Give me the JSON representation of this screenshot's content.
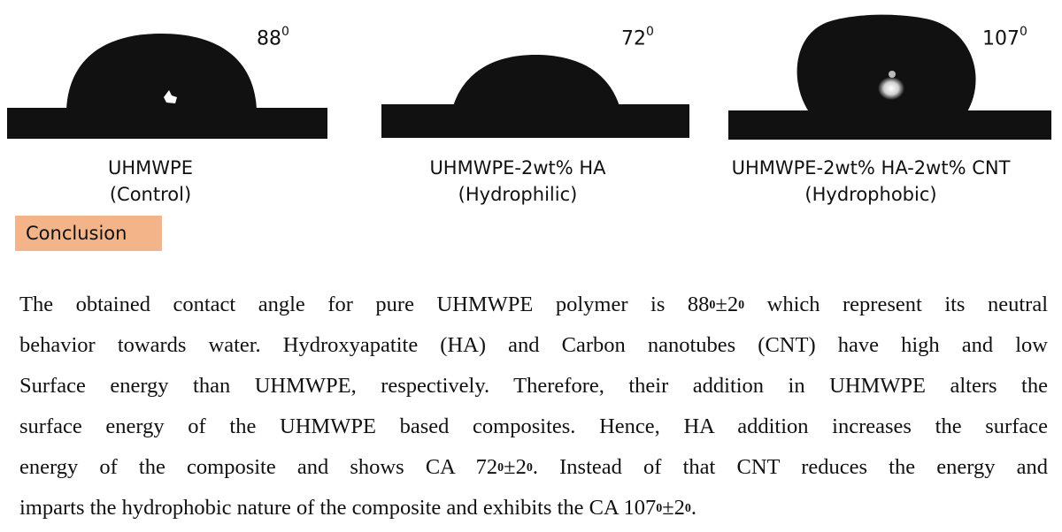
{
  "panels": [
    {
      "angle_value": "88",
      "angle_unit": "0",
      "caption_line1": "UHMWPE",
      "caption_line2": "(Control)",
      "contact_angle_deg": 88
    },
    {
      "angle_value": "72",
      "angle_unit": "0",
      "caption_line1": "UHMWPE-2wt% HA",
      "caption_line2": "(Hydrophilic)",
      "contact_angle_deg": 72
    },
    {
      "angle_value": "107",
      "angle_unit": "0",
      "caption_line1": "UHMWPE-2wt% HA-2wt% CNT",
      "caption_line2": "(Hydrophobic)",
      "contact_angle_deg": 107
    }
  ],
  "conclusion_label": "Conclusion",
  "paragraph": {
    "l1a": "The obtained contact angle for pure UHMWPE polymer is 88",
    "l1b": "±2",
    "l1c": " which represent its neutral",
    "l2": "behavior towards water. Hydroxyapatite (HA) and Carbon nanotubes (CNT) have high and low",
    "l3": "Surface energy than UHMWPE, respectively. Therefore, their addition in UHMWPE alters the",
    "l4": "surface energy of the UHMWPE based composites.  Hence, HA addition increases the surface",
    "l5a": "energy of the composite and shows CA 72",
    "l5b": "±2",
    "l5c": ". Instead of that CNT reduces the energy and",
    "l6a": "imparts the hydrophobic nature of the composite and exhibits the CA 107",
    "l6b": "±2",
    "l6c": ".",
    "degree_mark": "0"
  },
  "colors": {
    "drop": "#111111",
    "conclusion_bg": "#f2b488"
  }
}
